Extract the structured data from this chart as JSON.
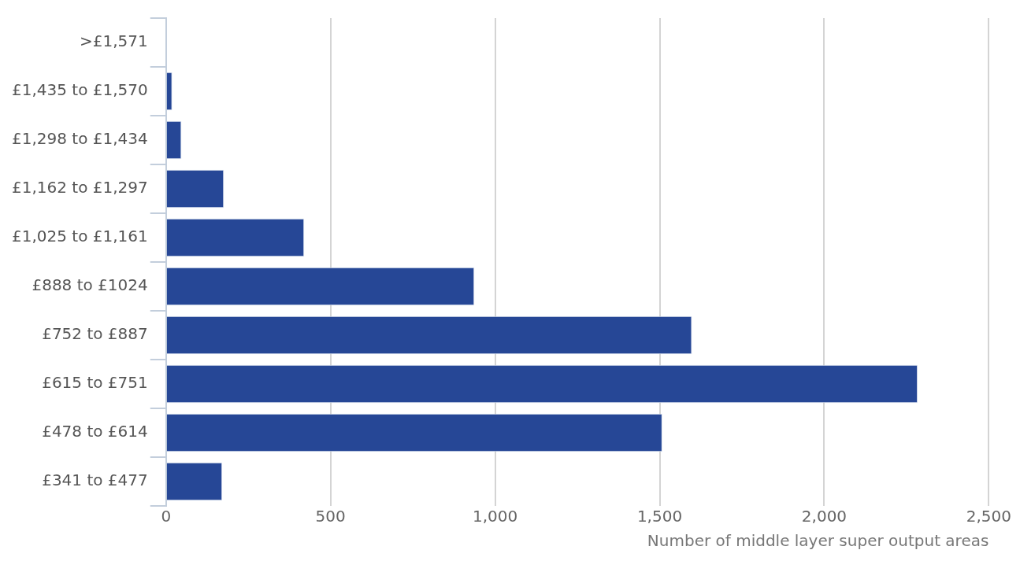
{
  "chart_data": {
    "type": "bar",
    "orientation": "horizontal",
    "xlabel": "Number of middle layer super output areas",
    "categories": [
      ">£1,571",
      "£1,435 to £1,570",
      "£1,298 to £1,434",
      "£1,162 to £1,297",
      "£1,025 to £1,161",
      "£888 to £1024",
      "£752 to £887",
      "£615 to £751",
      "£478 to £614",
      "£341 to £477"
    ],
    "values": [
      null,
      19,
      47,
      176,
      420,
      937,
      1598,
      2284,
      1508,
      171
    ],
    "color": "#264796",
    "xlim": [
      0,
      2500
    ],
    "xticks": [
      0,
      {
        "value": 500,
        "label": "500"
      },
      {
        "value": 1000,
        "label": "1,000"
      },
      {
        "value": 1500,
        "label": "1,500"
      },
      {
        "value": 2000,
        "label": "2,000"
      },
      {
        "value": 2500,
        "label": "2,500"
      }
    ],
    "grid": "x",
    "legend": false
  }
}
